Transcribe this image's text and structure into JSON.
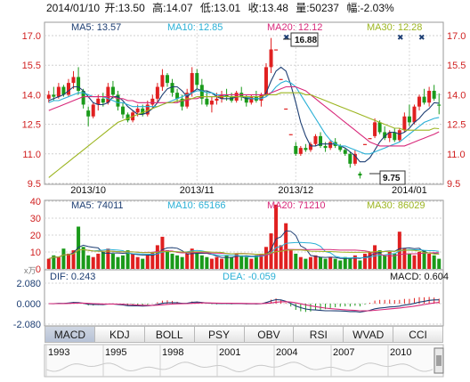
{
  "header": {
    "date": "2014/01/10",
    "open": "开:13.50",
    "high": "高:14.07",
    "low": "低:13.01",
    "close": "收:13.48",
    "volume": "量:50237",
    "change": "幅:-2.03%"
  },
  "price_panel": {
    "ma_labels": [
      "MA5: 13.57",
      "MA10: 12.85",
      "MA20: 12.12",
      "MA30: 12.28"
    ],
    "ma_colors": [
      "#1d3e73",
      "#2ab0d6",
      "#d8287a",
      "#9cb520"
    ],
    "ylim": [
      9.5,
      17.0
    ],
    "y_ticks": [
      "17.0",
      "15.5",
      "14.0",
      "12.5",
      "11.0",
      "9.5"
    ],
    "x_labels": [
      "2013/10",
      "2013/11",
      "2013/12",
      "2014/01"
    ],
    "high_annotation": "16.88",
    "low_annotation": "9.75"
  },
  "volume_panel": {
    "ma_labels": [
      "MA5: 74011",
      "MA10: 65166",
      "MA20: 71210",
      "MA30: 86029"
    ],
    "ylim": [
      0,
      40
    ],
    "y_ticks": [
      "40",
      "30",
      "20",
      "10",
      "0"
    ],
    "unit": "x万"
  },
  "macd_panel": {
    "dif_label": "DIF: 0.243",
    "dea_label": "DEA: -0.059",
    "macd_label": "MACD: 0.604",
    "ylim": [
      -2.08,
      2.08
    ],
    "y_ticks": [
      "2.080",
      "0.000",
      "-2.080"
    ]
  },
  "tabs": [
    "MACD",
    "KDJ",
    "BOLL",
    "PSY",
    "OBV",
    "RSI",
    "WVAD",
    "CCI"
  ],
  "timeline": {
    "years": [
      "1993",
      "1995",
      "1998",
      "2001",
      "2004",
      "2007",
      "2010"
    ]
  },
  "chart_data": {
    "type": "candlestick",
    "up_color": "#e02020",
    "down_color": "#1a9a1a",
    "candles": [
      [
        13.8,
        14.2,
        13.6,
        14.0
      ],
      [
        14.0,
        14.4,
        13.7,
        13.9
      ],
      [
        13.9,
        14.6,
        13.8,
        14.4
      ],
      [
        14.4,
        14.5,
        13.9,
        14.0
      ],
      [
        14.0,
        14.8,
        13.9,
        14.6
      ],
      [
        14.6,
        15.2,
        14.3,
        14.9
      ],
      [
        14.9,
        15.4,
        14.0,
        14.2
      ],
      [
        14.2,
        14.3,
        13.3,
        13.5
      ],
      [
        13.2,
        13.4,
        12.4,
        12.9
      ],
      [
        12.9,
        13.6,
        12.8,
        13.5
      ],
      [
        13.5,
        14.0,
        13.2,
        13.8
      ],
      [
        13.8,
        14.1,
        13.4,
        13.6
      ],
      [
        13.6,
        14.6,
        13.5,
        14.4
      ],
      [
        14.4,
        14.7,
        13.8,
        14.0
      ],
      [
        14.0,
        14.2,
        13.2,
        13.4
      ],
      [
        13.4,
        13.6,
        12.8,
        13.0
      ],
      [
        13.0,
        13.1,
        12.6,
        12.7
      ],
      [
        12.7,
        13.2,
        12.6,
        13.1
      ],
      [
        13.1,
        13.5,
        12.9,
        13.3
      ],
      [
        13.3,
        13.5,
        12.9,
        13.0
      ],
      [
        13.0,
        13.7,
        12.9,
        13.5
      ],
      [
        13.5,
        14.0,
        13.3,
        13.8
      ],
      [
        13.8,
        14.6,
        13.6,
        14.4
      ],
      [
        14.4,
        15.3,
        14.2,
        15.0
      ],
      [
        15.0,
        15.1,
        14.4,
        14.6
      ],
      [
        14.6,
        14.8,
        13.9,
        14.1
      ],
      [
        14.1,
        14.3,
        13.6,
        13.8
      ],
      [
        13.8,
        14.0,
        13.2,
        13.4
      ],
      [
        13.4,
        14.3,
        13.3,
        14.1
      ],
      [
        14.1,
        15.4,
        13.9,
        15.1
      ],
      [
        15.1,
        15.3,
        14.3,
        14.5
      ],
      [
        14.5,
        14.8,
        13.5,
        13.8
      ],
      [
        13.8,
        14.2,
        13.4,
        13.5
      ],
      [
        13.5,
        13.9,
        13.1,
        13.7
      ],
      [
        13.7,
        14.1,
        13.5,
        13.8
      ],
      [
        13.8,
        14.2,
        13.6,
        14.0
      ],
      [
        14.0,
        14.3,
        13.7,
        13.9
      ],
      [
        13.9,
        14.1,
        13.6,
        13.7
      ],
      [
        13.7,
        14.2,
        13.6,
        14.1
      ],
      [
        14.1,
        14.4,
        13.7,
        13.9
      ],
      [
        13.9,
        14.0,
        13.4,
        13.6
      ],
      [
        13.6,
        14.0,
        13.5,
        13.9
      ],
      [
        13.9,
        14.2,
        13.6,
        13.7
      ],
      [
        13.7,
        14.1,
        13.4,
        14.0
      ],
      [
        14.0,
        15.6,
        13.9,
        15.4
      ],
      [
        15.4,
        16.88,
        15.1,
        16.3
      ],
      [
        16.3,
        16.3,
        16.3,
        16.3
      ],
      [
        14.8,
        14.8,
        14.8,
        14.8
      ],
      [
        13.3,
        13.3,
        13.3,
        13.3
      ],
      [
        12.0,
        12.0,
        12.0,
        12.0
      ],
      [
        11.4,
        11.6,
        10.9,
        11.0
      ],
      [
        11.0,
        11.4,
        10.9,
        11.3
      ],
      [
        11.3,
        11.5,
        11.1,
        11.2
      ],
      [
        11.2,
        11.6,
        11.1,
        11.5
      ],
      [
        11.5,
        12.0,
        11.4,
        11.9
      ],
      [
        11.9,
        12.1,
        11.3,
        11.4
      ],
      [
        11.4,
        11.6,
        11.1,
        11.3
      ],
      [
        11.3,
        11.7,
        11.2,
        11.6
      ],
      [
        11.6,
        11.8,
        11.3,
        11.4
      ],
      [
        11.4,
        11.5,
        11.1,
        11.2
      ],
      [
        11.2,
        11.3,
        10.9,
        11.0
      ],
      [
        11.0,
        11.1,
        10.3,
        10.5
      ],
      [
        10.5,
        11.2,
        10.4,
        11.0
      ],
      [
        10.0,
        10.1,
        9.75,
        9.9
      ],
      [
        11.5,
        11.5,
        11.5,
        11.5
      ],
      [
        11.8,
        11.8,
        11.8,
        11.8
      ],
      [
        11.9,
        12.8,
        11.8,
        12.6
      ],
      [
        12.6,
        12.7,
        12.0,
        12.1
      ],
      [
        12.1,
        12.4,
        11.7,
        11.8
      ],
      [
        11.8,
        12.2,
        11.6,
        12.1
      ],
      [
        12.1,
        12.3,
        11.6,
        11.7
      ],
      [
        11.7,
        12.3,
        11.6,
        12.2
      ],
      [
        12.2,
        13.1,
        12.1,
        12.9
      ],
      [
        12.9,
        13.5,
        12.4,
        12.6
      ],
      [
        12.6,
        13.5,
        12.5,
        13.4
      ],
      [
        13.4,
        14.0,
        13.2,
        13.9
      ],
      [
        13.9,
        14.3,
        13.5,
        13.6
      ],
      [
        13.6,
        14.4,
        13.4,
        14.2
      ],
      [
        14.2,
        14.5,
        13.7,
        13.8
      ],
      [
        13.5,
        14.07,
        13.01,
        13.48
      ]
    ],
    "ma5": [
      13.7,
      13.8,
      13.9,
      14.0,
      14.2,
      14.4,
      14.4,
      14.2,
      13.9,
      13.6,
      13.5,
      13.5,
      13.6,
      13.9,
      13.9,
      13.7,
      13.4,
      13.2,
      13.0,
      13.0,
      13.1,
      13.3,
      13.6,
      14.0,
      14.3,
      14.4,
      14.4,
      14.2,
      13.9,
      14.1,
      14.3,
      14.2,
      14.2,
      14.1,
      13.9,
      13.8,
      13.8,
      13.8,
      13.9,
      13.9,
      13.8,
      13.8,
      13.8,
      13.8,
      14.1,
      14.7,
      15.2,
      15.4,
      15.2,
      14.5,
      13.6,
      12.6,
      11.9,
      11.4,
      11.4,
      11.5,
      11.5,
      11.5,
      11.5,
      11.4,
      11.3,
      11.1,
      10.9,
      10.6,
      10.6,
      10.8,
      11.2,
      11.6,
      11.9,
      12.1,
      12.1,
      12.0,
      12.1,
      12.3,
      12.6,
      12.8,
      13.1,
      13.3,
      13.6,
      13.57
    ],
    "ma10": [
      13.6,
      13.7,
      13.7,
      13.8,
      13.9,
      14.0,
      14.1,
      14.1,
      14.0,
      13.9,
      13.9,
      13.9,
      13.8,
      13.7,
      13.6,
      13.6,
      13.5,
      13.4,
      13.4,
      13.4,
      13.4,
      13.4,
      13.4,
      13.5,
      13.6,
      13.7,
      13.8,
      13.9,
      14.0,
      14.1,
      14.2,
      14.2,
      14.1,
      14.1,
      14.0,
      14.0,
      13.9,
      13.9,
      13.9,
      13.9,
      13.9,
      13.8,
      13.8,
      13.8,
      13.9,
      14.1,
      14.4,
      14.6,
      14.7,
      14.6,
      14.4,
      14.0,
      13.6,
      13.2,
      12.8,
      12.4,
      12.0,
      11.7,
      11.5,
      11.4,
      11.4,
      11.3,
      11.2,
      11.1,
      11.0,
      11.0,
      11.1,
      11.2,
      11.3,
      11.4,
      11.5,
      11.6,
      11.8,
      12.0,
      12.2,
      12.4,
      12.6,
      12.7,
      12.8,
      12.85
    ],
    "ma20": [
      13.2,
      13.3,
      13.4,
      13.5,
      13.6,
      13.7,
      13.8,
      13.9,
      13.9,
      13.9,
      13.9,
      13.9,
      13.9,
      13.9,
      13.8,
      13.8,
      13.7,
      13.7,
      13.6,
      13.6,
      13.6,
      13.6,
      13.6,
      13.6,
      13.6,
      13.6,
      13.6,
      13.7,
      13.7,
      13.8,
      13.8,
      13.9,
      13.9,
      13.9,
      13.9,
      14.0,
      14.0,
      14.0,
      14.0,
      14.0,
      14.0,
      14.0,
      14.0,
      14.0,
      14.0,
      14.1,
      14.2,
      14.3,
      14.4,
      14.4,
      14.4,
      14.3,
      14.2,
      14.0,
      13.8,
      13.6,
      13.4,
      13.2,
      13.0,
      12.8,
      12.6,
      12.4,
      12.2,
      12.0,
      11.8,
      11.6,
      11.5,
      11.4,
      11.4,
      11.4,
      11.4,
      11.4,
      11.4,
      11.5,
      11.6,
      11.7,
      11.8,
      11.9,
      12.0,
      12.12
    ],
    "ma30": [
      9.8,
      10.0,
      10.2,
      10.4,
      10.6,
      10.8,
      11.0,
      11.2,
      11.4,
      11.6,
      11.8,
      12.0,
      12.2,
      12.4,
      12.6,
      12.7,
      12.8,
      12.9,
      13.0,
      13.1,
      13.2,
      13.3,
      13.4,
      13.5,
      13.6,
      13.6,
      13.7,
      13.7,
      13.8,
      13.8,
      13.9,
      13.9,
      13.9,
      13.9,
      13.9,
      13.9,
      13.9,
      13.9,
      13.9,
      13.9,
      13.9,
      13.9,
      13.9,
      13.9,
      14.0,
      14.0,
      14.0,
      14.1,
      14.1,
      14.1,
      14.1,
      14.1,
      14.0,
      14.0,
      13.9,
      13.8,
      13.7,
      13.6,
      13.5,
      13.4,
      13.3,
      13.2,
      13.1,
      13.0,
      12.9,
      12.8,
      12.7,
      12.6,
      12.5,
      12.4,
      12.3,
      12.3,
      12.2,
      12.2,
      12.2,
      12.2,
      12.2,
      12.2,
      12.3,
      12.28
    ],
    "volume": [
      6,
      8,
      7,
      12,
      9,
      11,
      25,
      13,
      8,
      7,
      9,
      10,
      12,
      9,
      7,
      8,
      11,
      9,
      7,
      6,
      8,
      10,
      14,
      19,
      11,
      9,
      8,
      7,
      9,
      12,
      10,
      8,
      7,
      6,
      7,
      6,
      8,
      7,
      9,
      8,
      7,
      6,
      8,
      9,
      13,
      21,
      38,
      14,
      27,
      11,
      9,
      7,
      6,
      7,
      8,
      7,
      6,
      7,
      6,
      5,
      7,
      6,
      8,
      5,
      9,
      10,
      14,
      11,
      8,
      10,
      9,
      22,
      12,
      9,
      8,
      10,
      11,
      9,
      8,
      6
    ]
  }
}
